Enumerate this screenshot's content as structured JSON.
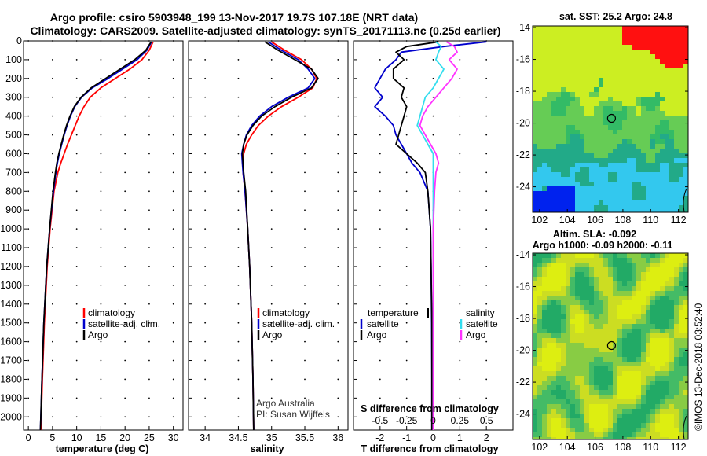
{
  "header": {
    "title_line1": "Argo profile: csiro 5903948_199 13-Nov-2017 19.7S 107.18E (NRT data)",
    "title_line2": "Climatology: CARS2009. Satellite-adjusted climatology: synTS_20171113.nc (0.25d earlier)"
  },
  "colors": {
    "climatology": "#ff0000",
    "satellite": "#0000cc",
    "argo": "#000000",
    "argo_salinity": "#ff33ff",
    "satellite_salinity": "#33ddee"
  },
  "depth_axis": {
    "ticks": [
      0,
      100,
      200,
      300,
      400,
      500,
      600,
      700,
      800,
      900,
      1000,
      1100,
      1200,
      1300,
      1400,
      1500,
      1600,
      1700,
      1800,
      1900,
      2000
    ],
    "range": [
      0,
      2070
    ]
  },
  "chart_data": [
    {
      "type": "line",
      "name": "temperature-profile",
      "xlabel": "temperature (deg C)",
      "ylabel": "depth",
      "xlim": [
        -1,
        32
      ],
      "ylim": [
        2070,
        0
      ],
      "xticks": [
        0,
        5,
        10,
        15,
        20,
        25,
        30
      ],
      "legend": [
        "climatology",
        "satellite-adj. clim.",
        "Argo"
      ],
      "series": [
        {
          "name": "climatology",
          "color": "#ff0000",
          "depth": [
            5,
            50,
            100,
            150,
            200,
            250,
            300,
            350,
            400,
            450,
            500,
            550,
            600,
            650,
            700,
            800,
            1000,
            1200,
            1500,
            1800,
            2070
          ],
          "values": [
            25.8,
            25.0,
            23.5,
            21.0,
            18.0,
            15.0,
            12.8,
            11.5,
            10.5,
            9.7,
            8.9,
            8.1,
            7.4,
            6.7,
            6.1,
            5.3,
            4.5,
            3.9,
            3.3,
            2.9,
            2.6
          ]
        },
        {
          "name": "satellite-adj. clim.",
          "color": "#0000cc",
          "depth": [
            5,
            50,
            100,
            150,
            200,
            250,
            300,
            350,
            400,
            450,
            500,
            550,
            600,
            650,
            700,
            800,
            1000,
            1200,
            1500,
            1800,
            2070
          ],
          "values": [
            25.5,
            24.5,
            22.5,
            19.5,
            16.5,
            13.2,
            11.0,
            9.6,
            8.7,
            8.0,
            7.4,
            6.9,
            6.4,
            6.0,
            5.7,
            5.2,
            4.4,
            3.8,
            3.2,
            2.8,
            2.5
          ]
        },
        {
          "name": "Argo",
          "color": "#000000",
          "depth": [
            5,
            50,
            100,
            150,
            200,
            250,
            300,
            350,
            400,
            450,
            500,
            550,
            600,
            650,
            700,
            800,
            1000,
            1200,
            1500,
            1800,
            2070
          ],
          "values": [
            25.4,
            24.3,
            22.0,
            19.0,
            16.0,
            13.0,
            10.9,
            9.5,
            8.6,
            7.9,
            7.3,
            6.8,
            6.3,
            5.9,
            5.6,
            5.1,
            4.4,
            3.8,
            3.2,
            2.8,
            2.5
          ]
        }
      ]
    },
    {
      "type": "line",
      "name": "salinity-profile",
      "xlabel": "salinity",
      "ylabel": "depth",
      "xlim": [
        33.75,
        36.15
      ],
      "ylim": [
        2070,
        0
      ],
      "xticks": [
        34,
        34.5,
        35,
        35.5,
        36
      ],
      "legend": [
        "climatology",
        "satellite-adj. clim.",
        "Argo"
      ],
      "annotation": [
        "Argo Australia",
        "PI: Susan Wijffels"
      ],
      "series": [
        {
          "name": "climatology",
          "color": "#ff0000",
          "depth": [
            5,
            50,
            100,
            150,
            200,
            250,
            300,
            350,
            400,
            450,
            500,
            550,
            600,
            650,
            700,
            800,
            1000,
            1200,
            1500,
            1800,
            2070
          ],
          "values": [
            35.0,
            35.2,
            35.45,
            35.6,
            35.68,
            35.62,
            35.4,
            35.15,
            34.95,
            34.8,
            34.7,
            34.62,
            34.58,
            34.57,
            34.57,
            34.6,
            34.64,
            34.67,
            34.7,
            34.72,
            34.73
          ]
        },
        {
          "name": "satellite-adj. clim.",
          "color": "#0000cc",
          "depth": [
            5,
            50,
            100,
            150,
            200,
            250,
            300,
            350,
            400,
            450,
            500,
            550,
            600,
            650,
            700,
            800,
            1000,
            1200,
            1500,
            1800,
            2070
          ],
          "values": [
            34.95,
            35.15,
            35.4,
            35.55,
            35.65,
            35.55,
            35.25,
            35.0,
            34.82,
            34.7,
            34.62,
            34.58,
            34.55,
            34.56,
            34.57,
            34.6,
            34.64,
            34.67,
            34.7,
            34.72,
            34.73
          ]
        },
        {
          "name": "Argo",
          "color": "#000000",
          "depth": [
            5,
            50,
            100,
            150,
            200,
            250,
            300,
            350,
            400,
            450,
            500,
            550,
            600,
            650,
            700,
            800,
            1000,
            1200,
            1500,
            1800,
            2070
          ],
          "values": [
            34.9,
            35.1,
            35.35,
            35.6,
            35.7,
            35.6,
            35.3,
            35.05,
            34.85,
            34.72,
            34.63,
            34.58,
            34.56,
            34.57,
            34.58,
            34.61,
            34.64,
            34.67,
            34.7,
            34.72,
            34.73
          ]
        }
      ]
    },
    {
      "type": "line",
      "name": "difference-profile",
      "xlabel": "T difference from climatology",
      "xlabel_top": "S difference from climatology",
      "xlim": [
        -3,
        3
      ],
      "ylim": [
        2070,
        0
      ],
      "xticks": [
        -2,
        -1,
        0,
        1,
        2
      ],
      "xtick_labels_top": [
        "-0.5",
        "-0.25",
        "0",
        "0.25",
        "0.5"
      ],
      "legend_left_title": "temperature",
      "legend_right_title": "salinity",
      "legend_left": [
        "satellite",
        "Argo"
      ],
      "legend_right": [
        "satellite",
        "Argo"
      ],
      "series": [
        {
          "name": "temperature satellite",
          "color": "#0000cc",
          "depth": [
            5,
            30,
            60,
            100,
            150,
            200,
            250,
            300,
            350,
            400,
            450,
            500,
            550,
            600,
            650,
            700,
            800,
            1000,
            1200,
            1500,
            1800,
            2070
          ],
          "values": [
            2.0,
            0.4,
            -1.2,
            -1.4,
            -1.8,
            -2.0,
            -2.2,
            -1.9,
            -2.2,
            -1.8,
            -1.5,
            -1.4,
            -1.2,
            -1.0,
            -0.8,
            -0.5,
            -0.2,
            -0.1,
            -0.08,
            -0.06,
            -0.05,
            -0.05
          ]
        },
        {
          "name": "temperature Argo",
          "color": "#000000",
          "depth": [
            5,
            30,
            60,
            100,
            150,
            200,
            250,
            300,
            350,
            400,
            450,
            500,
            550,
            600,
            650,
            700,
            800,
            1000,
            1200,
            1500,
            1800,
            2070
          ],
          "values": [
            0.2,
            -1.0,
            -1.4,
            -1.1,
            -1.5,
            -1.5,
            -1.1,
            -1.2,
            -1.0,
            -1.1,
            -1.2,
            -1.3,
            -1.4,
            -1.0,
            -0.6,
            -0.3,
            -0.2,
            -0.1,
            -0.08,
            -0.05,
            -0.05,
            -0.05
          ]
        },
        {
          "name": "salinity satellite",
          "color": "#33ddee",
          "depth": [
            5,
            30,
            60,
            100,
            150,
            200,
            250,
            300,
            350,
            400,
            450,
            500,
            550,
            600,
            650,
            700,
            800,
            1000,
            1200,
            1500,
            1800,
            2070
          ],
          "values": [
            0.1,
            0.3,
            0.2,
            0.1,
            0.4,
            0.2,
            0.0,
            -0.3,
            -0.4,
            -0.5,
            -0.6,
            -0.4,
            -0.2,
            0.0,
            0.0,
            0.0,
            0.0,
            0.0,
            0.0,
            0.0,
            0.0,
            0.0
          ]
        },
        {
          "name": "salinity Argo",
          "color": "#ff33ff",
          "depth": [
            5,
            30,
            60,
            100,
            150,
            200,
            250,
            300,
            350,
            400,
            450,
            500,
            550,
            600,
            650,
            700,
            800,
            1000,
            1200,
            1500,
            1800,
            2070
          ],
          "values": [
            0.5,
            0.8,
            0.9,
            0.6,
            0.9,
            0.7,
            0.4,
            0.1,
            -0.2,
            -0.4,
            -0.5,
            -0.3,
            -0.1,
            0.1,
            0.2,
            0.1,
            0.05,
            0.0,
            0.0,
            0.0,
            0.0,
            0.0
          ]
        }
      ]
    },
    {
      "type": "heatmap",
      "name": "sst-map",
      "title": "sat. SST: 25.2 Argo: 24.8",
      "xlim": [
        101.5,
        112.7
      ],
      "ylim": [
        -25.6,
        -13.9
      ],
      "xticks": [
        102,
        104,
        106,
        108,
        110,
        112
      ],
      "yticks": [
        -14,
        -16,
        -18,
        -20,
        -22,
        -24
      ],
      "marker": {
        "lon": 107.18,
        "lat": -19.7
      }
    },
    {
      "type": "heatmap",
      "name": "sla-map",
      "title_line1": "Altim. SLA: -0.092",
      "title_line2": "Argo h1000: -0.09 h2000: -0.11",
      "xlim": [
        101.5,
        112.7
      ],
      "ylim": [
        -25.6,
        -13.9
      ],
      "xticks": [
        102,
        104,
        106,
        108,
        110,
        112
      ],
      "yticks": [
        -14,
        -16,
        -18,
        -20,
        -22,
        -24
      ],
      "marker": {
        "lon": 107.18,
        "lat": -19.7
      }
    }
  ],
  "footer": {
    "stamp": "©IMOS 13-Dec-2018 03:52:40"
  }
}
